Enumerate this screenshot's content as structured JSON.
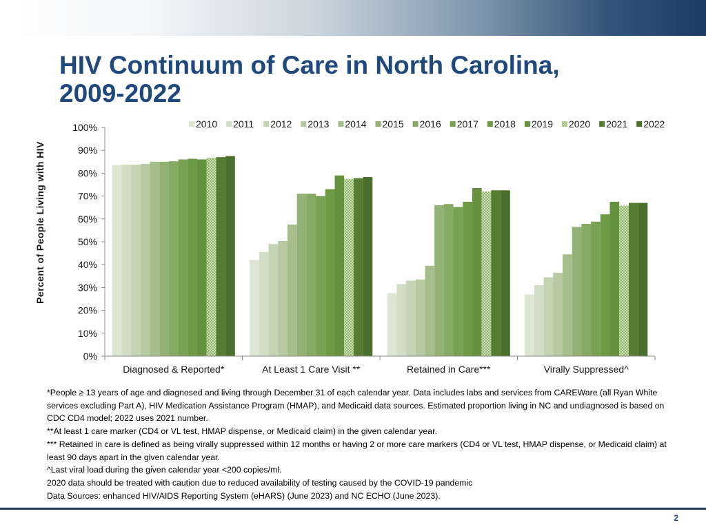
{
  "slide": {
    "title_line1": "HIV Continuum of Care in North Carolina,",
    "title_line2": "2009-2022",
    "page_number": "2"
  },
  "chart_data": {
    "type": "bar",
    "title": "",
    "xlabel": "",
    "ylabel": "Percent of People Living with HIV",
    "ylim": [
      0,
      100
    ],
    "yticks": [
      "0%",
      "10%",
      "20%",
      "30%",
      "40%",
      "50%",
      "60%",
      "70%",
      "80%",
      "90%",
      "100%"
    ],
    "grid": false,
    "legend_position": "top",
    "categories": [
      "Diagnosed & Reported*",
      "At Least 1 Care Visit **",
      "Retained in Care***",
      "Virally Suppressed^"
    ],
    "series": [
      {
        "name": "2010",
        "color": "#dde6d3",
        "values": [
          83.5,
          42,
          27.5,
          27
        ]
      },
      {
        "name": "2011",
        "color": "#d2ddc5",
        "values": [
          83.7,
          45.5,
          31.5,
          31
        ]
      },
      {
        "name": "2012",
        "color": "#c4d3b3",
        "values": [
          83.7,
          49,
          33,
          34.5
        ]
      },
      {
        "name": "2013",
        "color": "#b6c9a0",
        "values": [
          84,
          50.3,
          33.5,
          36.5
        ]
      },
      {
        "name": "2014",
        "color": "#a6be8c",
        "values": [
          85,
          57.5,
          39.5,
          44.5
        ]
      },
      {
        "name": "2015",
        "color": "#93b174",
        "values": [
          85,
          71,
          66,
          56.5
        ]
      },
      {
        "name": "2016",
        "color": "#86a963",
        "values": [
          85.2,
          71,
          66.5,
          57.8
        ]
      },
      {
        "name": "2017",
        "color": "#79a153",
        "values": [
          86,
          70,
          65.2,
          58.8
        ]
      },
      {
        "name": "2018",
        "color": "#6e9a45",
        "values": [
          86.3,
          73,
          67.5,
          62
        ]
      },
      {
        "name": "2019",
        "color": "#66913e",
        "values": [
          86,
          79,
          73.5,
          67.5
        ]
      },
      {
        "name": "2020",
        "color": "#8fb566",
        "pattern": "dotted",
        "values": [
          86.7,
          77.5,
          72,
          65.8
        ]
      },
      {
        "name": "2021",
        "color": "#567c34",
        "values": [
          87,
          77.8,
          72.5,
          67
        ]
      },
      {
        "name": "2022",
        "color": "#4c6f2e",
        "values": [
          87.5,
          78.3,
          72.5,
          67
        ]
      }
    ]
  },
  "footnotes": [
    "*People ≥ 13 years of age and diagnosed and living through December 31 of each calendar year. Data includes labs and services from CAREWare (all Ryan White services excluding Part A), HIV Medication Assistance Program (HMAP), and Medicaid data sources. Estimated proportion living in NC and undiagnosed is based on CDC CD4 model; 2022 uses 2021 number.",
    "**At least 1 care marker (CD4 or VL test, HMAP dispense, or Medicaid claim) in the given calendar year.",
    "*** Retained in care is defined as being virally suppressed within 12 months or having 2 or more care markers (CD4 or VL test, HMAP dispense, or Medicaid claim) at least 90 days apart in the given calendar year.",
    "^Last viral load during the given calendar year <200 copies/ml.",
    "2020 data should be treated with caution due to reduced availability of testing caused by the COVID-19 pandemic",
    "Data Sources: enhanced HIV/AIDS Reporting System (eHARS) (June 2023) and NC ECHO (June 2023)."
  ]
}
